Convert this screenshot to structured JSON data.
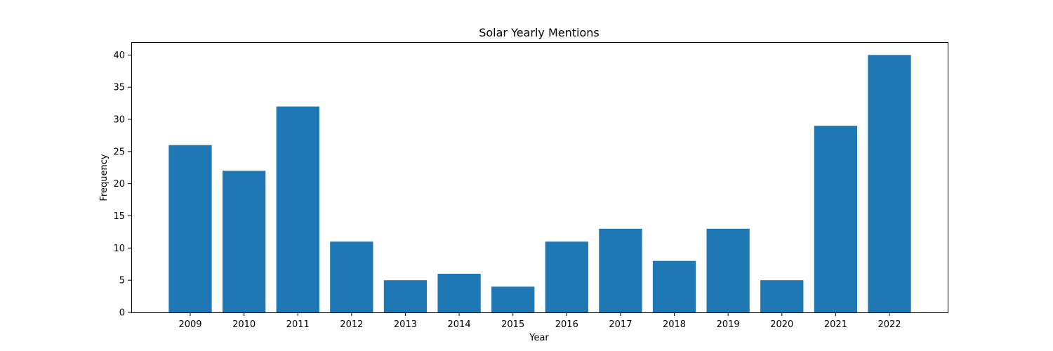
{
  "chart_data": {
    "type": "bar",
    "title": "Solar Yearly Mentions",
    "xlabel": "Year",
    "ylabel": "Frequency",
    "categories": [
      "2009",
      "2010",
      "2011",
      "2012",
      "2013",
      "2014",
      "2015",
      "2016",
      "2017",
      "2018",
      "2019",
      "2020",
      "2021",
      "2022"
    ],
    "values": [
      26,
      22,
      32,
      11,
      5,
      6,
      4,
      11,
      13,
      8,
      13,
      5,
      29,
      40
    ],
    "ylim": [
      0,
      42
    ],
    "yticks": [
      "0",
      "5",
      "10",
      "15",
      "20",
      "25",
      "30",
      "35",
      "40"
    ],
    "bar_color": "#1f77b4",
    "grid": false,
    "legend": "none"
  }
}
